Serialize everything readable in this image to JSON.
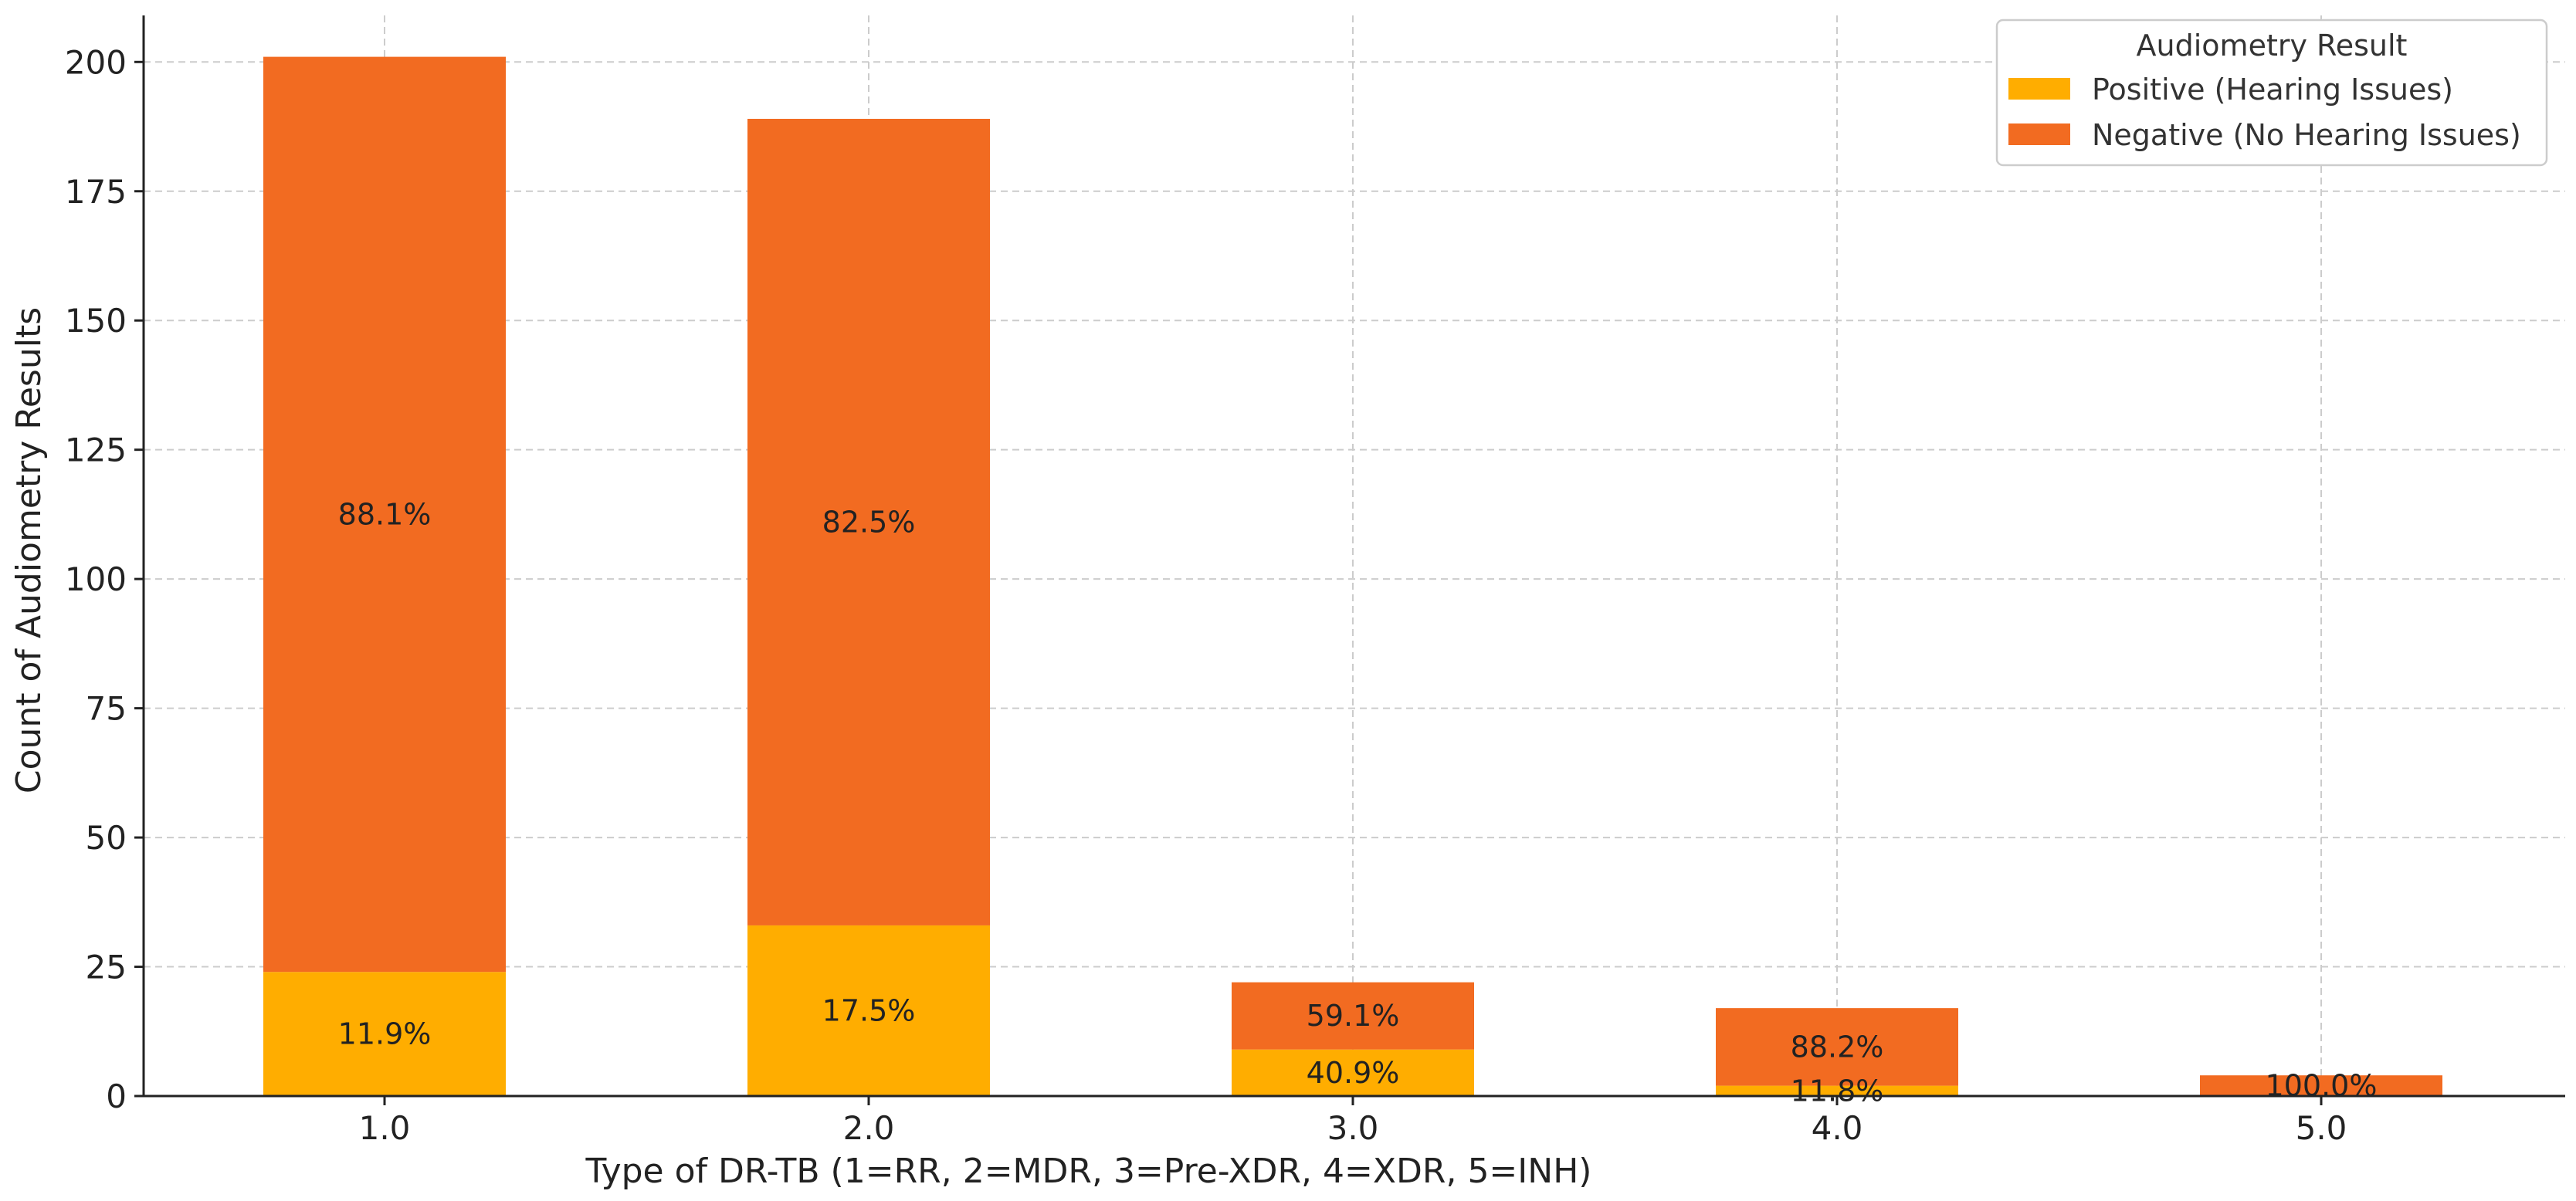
{
  "chart_data": {
    "type": "bar",
    "stacked": true,
    "title": "",
    "xlabel": "Type of DR-TB (1=RR, 2=MDR, 3=Pre-XDR, 4=XDR, 5=INH)",
    "ylabel": "Count of Audiometry Results",
    "categories": [
      "1.0",
      "2.0",
      "3.0",
      "4.0",
      "5.0"
    ],
    "ylim": [
      0,
      209
    ],
    "yticks": [
      "0",
      "25",
      "50",
      "75",
      "100",
      "125",
      "150",
      "175",
      "200"
    ],
    "grid": true,
    "legend": {
      "title": "Audiometry Result",
      "position": "top-right"
    },
    "series": [
      {
        "name": "Positive (Hearing Issues)",
        "color": "#ffad00",
        "values": [
          24,
          33,
          9,
          2,
          0
        ],
        "labels": [
          "11.9%",
          "17.5%",
          "40.9%",
          "11.8%",
          ""
        ]
      },
      {
        "name": "Negative (No Hearing Issues)",
        "color": "#f26b21",
        "values": [
          177,
          156,
          13,
          15,
          4
        ],
        "labels": [
          "88.1%",
          "82.5%",
          "59.1%",
          "88.2%",
          "100.0%"
        ]
      }
    ]
  }
}
